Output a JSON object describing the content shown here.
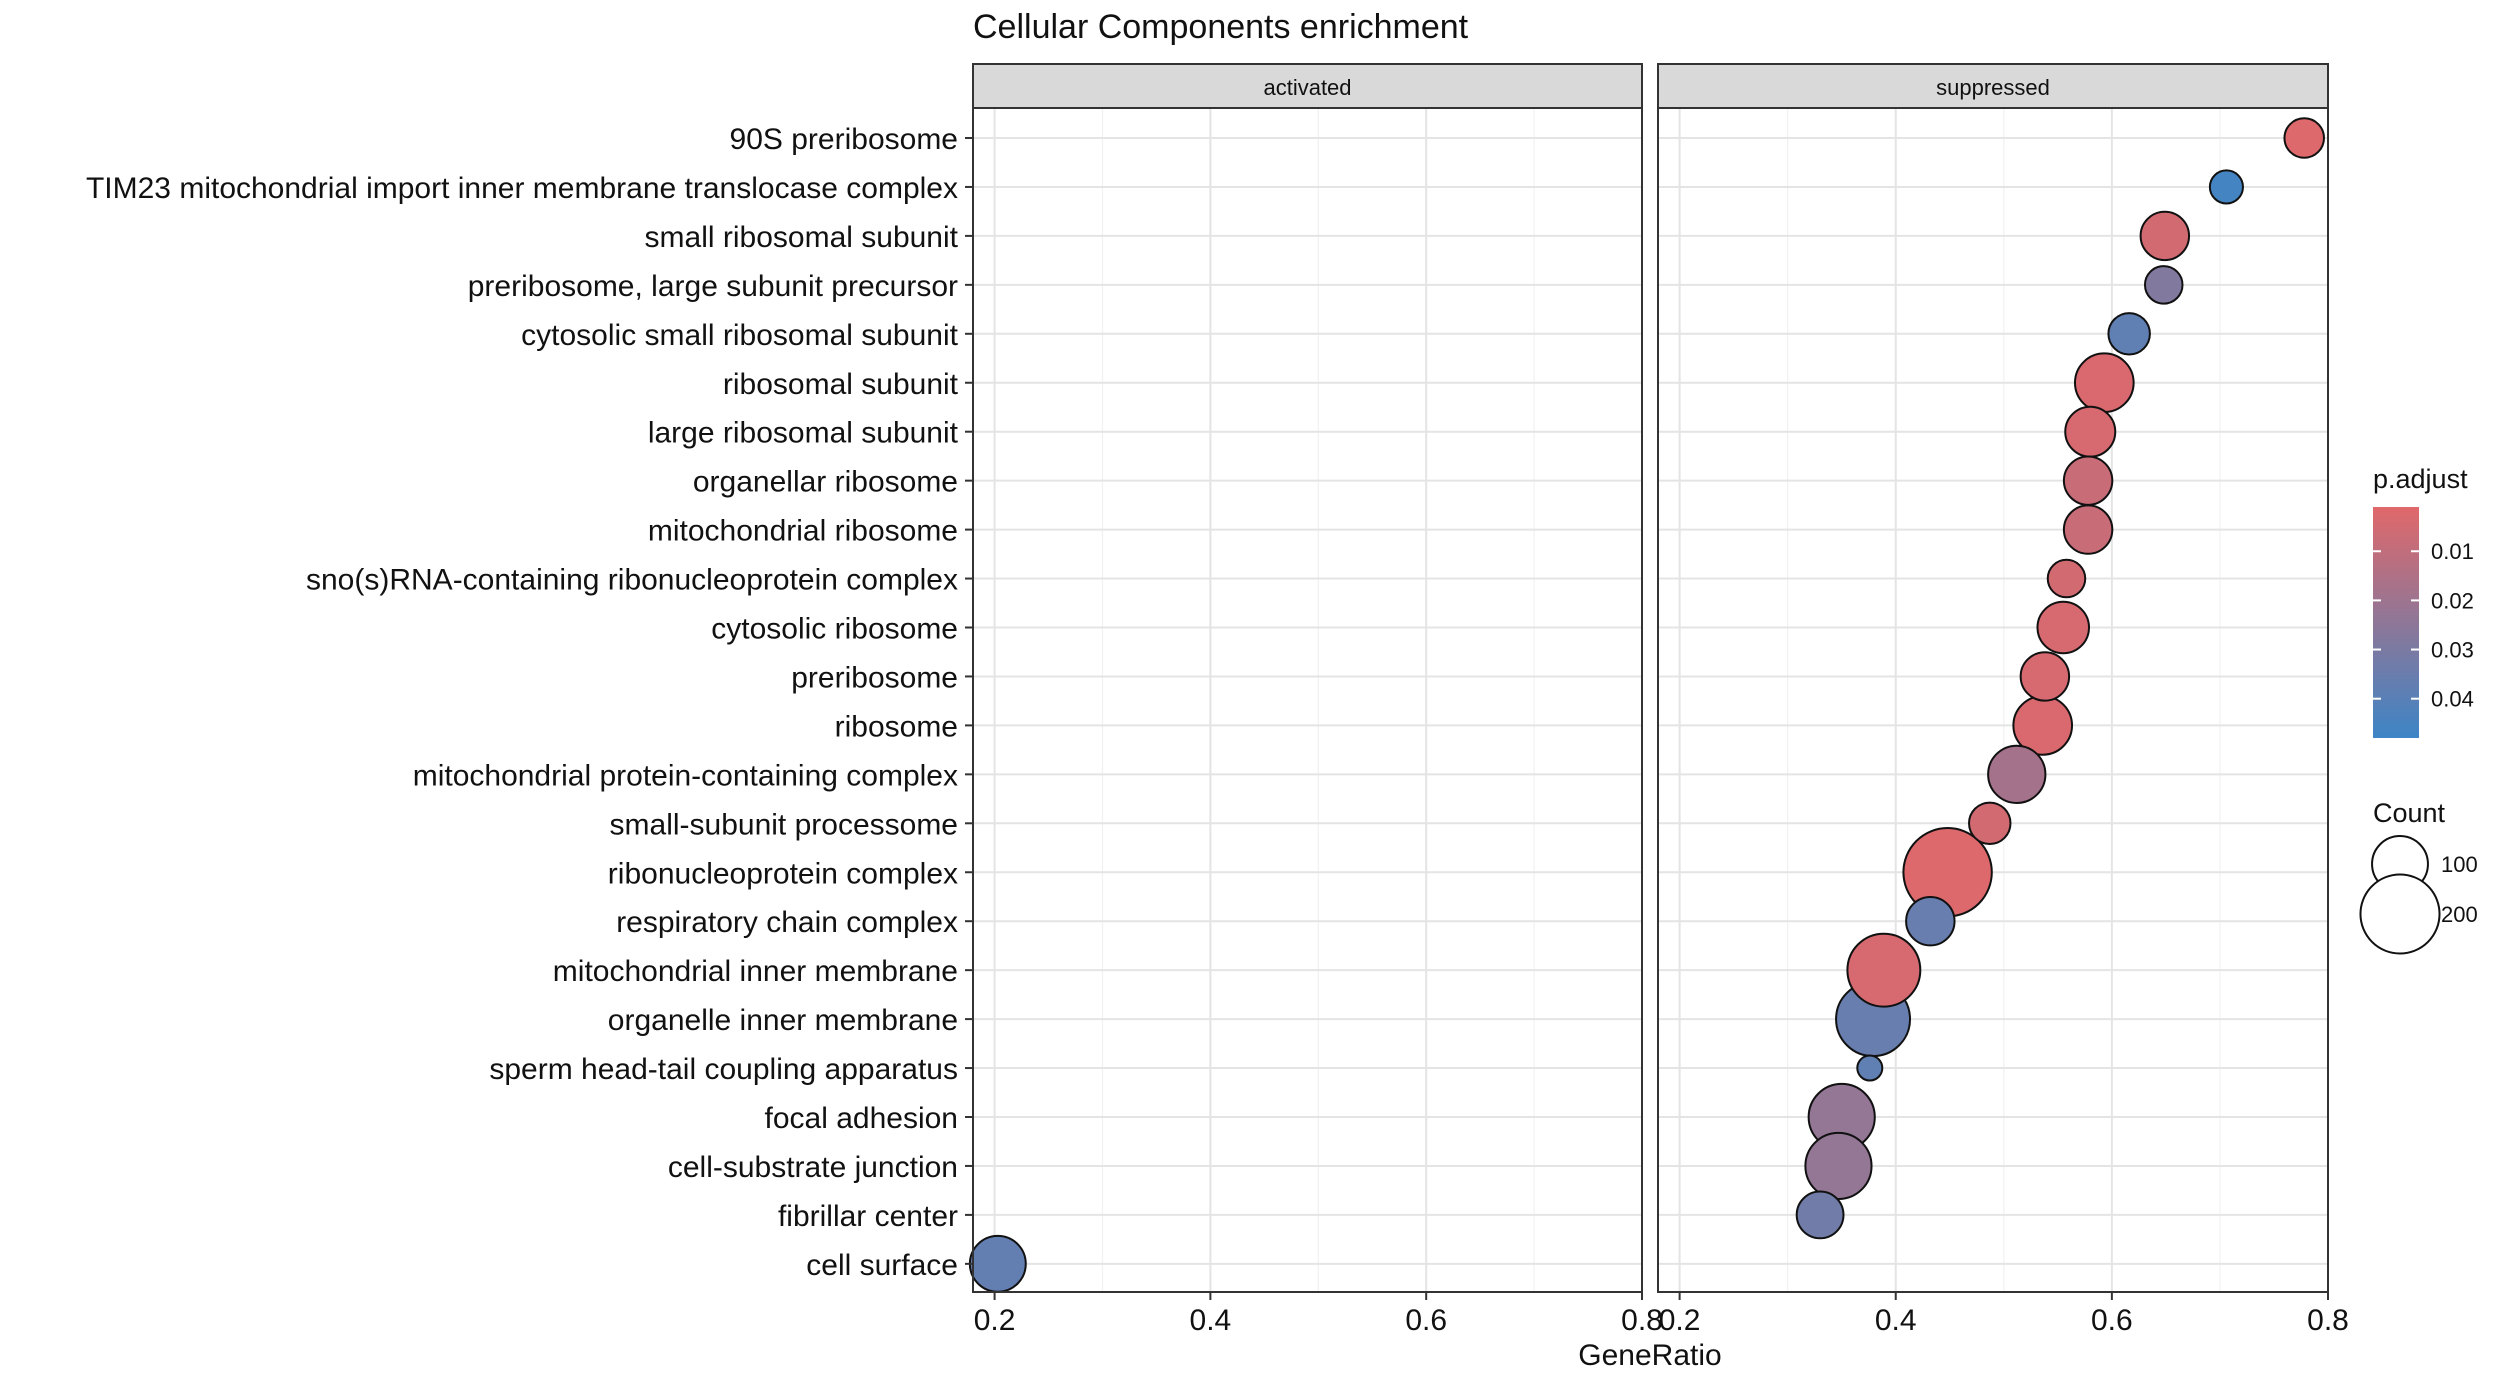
{
  "chart_data": {
    "type": "scatter",
    "title": "Cellular Components enrichment",
    "xlabel": "GeneRatio",
    "ylabel": "",
    "xlim": [
      0.18,
      0.8
    ],
    "x_ticks": [
      "0.2",
      "0.4",
      "0.6",
      "0.8"
    ],
    "facets": [
      "activated",
      "suppressed"
    ],
    "categories": [
      "90S preribosome",
      "TIM23 mitochondrial import inner membrane translocase complex",
      "small ribosomal subunit",
      "preribosome, large subunit precursor",
      "cytosolic small ribosomal subunit",
      "ribosomal subunit",
      "large ribosomal subunit",
      "organellar ribosome",
      "mitochondrial ribosome",
      "sno(s)RNA-containing ribonucleoprotein complex",
      "cytosolic ribosome",
      "preribosome",
      "ribosome",
      "mitochondrial protein-containing complex",
      "small-subunit processome",
      "ribonucleoprotein complex",
      "respiratory chain complex",
      "mitochondrial inner membrane",
      "organelle inner membrane",
      "sperm head-tail coupling apparatus",
      "focal adhesion",
      "cell-substrate junction",
      "fibrillar center",
      "cell surface"
    ],
    "points": [
      {
        "facet": "suppressed",
        "term": "90S preribosome",
        "x": 0.778,
        "count": 50,
        "p_adjust": 0.002
      },
      {
        "facet": "suppressed",
        "term": "TIM23 mitochondrial import inner membrane translocase complex",
        "x": 0.706,
        "count": 35,
        "p_adjust": 0.046
      },
      {
        "facet": "suppressed",
        "term": "small ribosomal subunit",
        "x": 0.649,
        "count": 75,
        "p_adjust": 0.005
      },
      {
        "facet": "suppressed",
        "term": "preribosome, large subunit precursor",
        "x": 0.648,
        "count": 45,
        "p_adjust": 0.028
      },
      {
        "facet": "suppressed",
        "term": "cytosolic small ribosomal subunit",
        "x": 0.616,
        "count": 55,
        "p_adjust": 0.038
      },
      {
        "facet": "suppressed",
        "term": "ribosomal subunit",
        "x": 0.593,
        "count": 110,
        "p_adjust": 0.003
      },
      {
        "facet": "suppressed",
        "term": "large ribosomal subunit",
        "x": 0.58,
        "count": 80,
        "p_adjust": 0.004
      },
      {
        "facet": "suppressed",
        "term": "organellar ribosome",
        "x": 0.578,
        "count": 75,
        "p_adjust": 0.008
      },
      {
        "facet": "suppressed",
        "term": "mitochondrial ribosome",
        "x": 0.578,
        "count": 75,
        "p_adjust": 0.008
      },
      {
        "facet": "suppressed",
        "term": "sno(s)RNA-containing ribonucleoprotein complex",
        "x": 0.558,
        "count": 45,
        "p_adjust": 0.005
      },
      {
        "facet": "suppressed",
        "term": "cytosolic ribosome",
        "x": 0.555,
        "count": 85,
        "p_adjust": 0.004
      },
      {
        "facet": "suppressed",
        "term": "preribosome",
        "x": 0.538,
        "count": 75,
        "p_adjust": 0.004
      },
      {
        "facet": "suppressed",
        "term": "ribosome",
        "x": 0.536,
        "count": 110,
        "p_adjust": 0.003
      },
      {
        "facet": "suppressed",
        "term": "mitochondrial protein-containing complex",
        "x": 0.512,
        "count": 105,
        "p_adjust": 0.018
      },
      {
        "facet": "suppressed",
        "term": "small-subunit processome",
        "x": 0.487,
        "count": 55,
        "p_adjust": 0.005
      },
      {
        "facet": "suppressed",
        "term": "ribonucleoprotein complex",
        "x": 0.448,
        "count": 250,
        "p_adjust": 0.002
      },
      {
        "facet": "suppressed",
        "term": "respiratory chain complex",
        "x": 0.432,
        "count": 75,
        "p_adjust": 0.036
      },
      {
        "facet": "suppressed",
        "term": "mitochondrial inner membrane",
        "x": 0.389,
        "count": 170,
        "p_adjust": 0.004
      },
      {
        "facet": "suppressed",
        "term": "organelle inner membrane",
        "x": 0.379,
        "count": 175,
        "p_adjust": 0.036
      },
      {
        "facet": "suppressed",
        "term": "sperm head-tail coupling apparatus",
        "x": 0.376,
        "count": 20,
        "p_adjust": 0.038
      },
      {
        "facet": "suppressed",
        "term": "focal adhesion",
        "x": 0.35,
        "count": 140,
        "p_adjust": 0.023
      },
      {
        "facet": "suppressed",
        "term": "cell-substrate junction",
        "x": 0.347,
        "count": 140,
        "p_adjust": 0.023
      },
      {
        "facet": "suppressed",
        "term": "fibrillar center",
        "x": 0.33,
        "count": 70,
        "p_adjust": 0.033
      },
      {
        "facet": "activated",
        "term": "cell surface",
        "x": 0.203,
        "count": 100,
        "p_adjust": 0.037
      }
    ],
    "color_legend": {
      "title": "p.adjust",
      "ticks": [
        0.01,
        0.02,
        0.03,
        0.04
      ],
      "tick_labels": [
        "0.01",
        "0.02",
        "0.03",
        "0.04"
      ],
      "range": [
        0.001,
        0.048
      ],
      "low_color": "#E0686A",
      "high_color": "#3D85C6"
    },
    "size_legend": {
      "title": "Count",
      "values": [
        100,
        200
      ],
      "labels": [
        "100",
        "200"
      ]
    },
    "grid": true,
    "legend_position": "right"
  }
}
